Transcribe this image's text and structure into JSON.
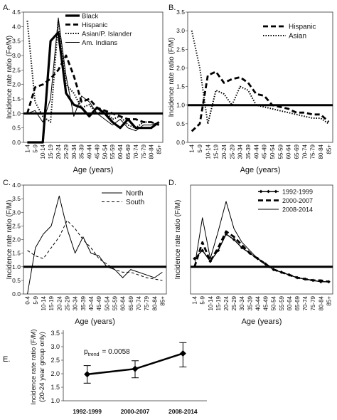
{
  "chart_data": [
    {
      "panel": "A.",
      "type": "line",
      "ylabel": "Incidence rate ratio (Fe/M)",
      "xlabel": "Age (years)",
      "ylim": [
        0,
        4.5
      ],
      "yticks": [
        "0.0",
        "0.5",
        "1.0",
        "1.5",
        "2.0",
        "2.5",
        "3.0",
        "3.5",
        "4.0",
        "4.5"
      ],
      "categories": [
        "1-4",
        "5-9",
        "10-14",
        "15-19",
        "20-24",
        "25-29",
        "30-34",
        "35-39",
        "40-44",
        "45-49",
        "50-54",
        "55-59",
        "60-64",
        "65-69",
        "70-74",
        "75-79",
        "80-84",
        "85+"
      ],
      "reference_line": 1.0,
      "legend": "top-left",
      "series": [
        {
          "name": "Black",
          "style": "solid-thick",
          "values": [
            0.0,
            0.0,
            0.0,
            3.5,
            3.8,
            1.7,
            1.3,
            1.2,
            0.9,
            1.2,
            1.0,
            0.7,
            0.5,
            0.8,
            0.5,
            0.5,
            0.5,
            0.7
          ]
        },
        {
          "name": "Hispanic",
          "style": "dashed-thick",
          "values": [
            1.0,
            1.9,
            2.0,
            2.2,
            2.5,
            3.0,
            2.3,
            1.4,
            1.5,
            1.2,
            1.1,
            1.0,
            0.9,
            0.8,
            0.8,
            0.7,
            0.7,
            0.6
          ]
        },
        {
          "name": "Asian/P. Islander",
          "style": "dotted",
          "values": [
            4.2,
            1.4,
            0.9,
            0.7,
            4.2,
            2.0,
            1.7,
            1.2,
            1.3,
            1.0,
            1.1,
            0.8,
            0.9,
            0.6,
            0.5,
            0.7,
            0.7,
            0.6
          ]
        },
        {
          "name": "Am. Indians",
          "style": "solid-thin",
          "values": [
            1.0,
            1.1,
            0.7,
            1.5,
            4.3,
            2.3,
            0.9,
            1.6,
            1.4,
            1.0,
            0.8,
            0.6,
            0.8,
            0.5,
            0.4,
            0.6,
            0.6,
            0.7
          ]
        }
      ]
    },
    {
      "panel": "B.",
      "type": "line",
      "ylabel": "Incidence rate ratio (F/M)",
      "xlabel": "Age (years)",
      "ylim": [
        0,
        3.5
      ],
      "yticks": [
        "0.0",
        "0.5",
        "1.0",
        "1.5",
        "2.0",
        "2.5",
        "3.0",
        "3.5"
      ],
      "categories": [
        "1-4",
        "5-9",
        "10-14",
        "15-19",
        "20-24",
        "25-29",
        "30-34",
        "35-39",
        "40-44",
        "45-49",
        "50-54",
        "55-59",
        "60-64",
        "65-69",
        "70-74",
        "75-79",
        "80-84",
        "85+"
      ],
      "reference_line": 1.0,
      "legend": "top-right",
      "series": [
        {
          "name": "Hispanic",
          "style": "dashed-thick",
          "values": [
            0.3,
            0.5,
            1.8,
            1.9,
            1.6,
            1.7,
            1.75,
            1.6,
            1.3,
            1.25,
            1.0,
            0.95,
            0.9,
            0.8,
            0.8,
            0.75,
            0.75,
            0.55
          ]
        },
        {
          "name": "Asian",
          "style": "dotted",
          "values": [
            3.0,
            2.0,
            0.5,
            1.4,
            1.3,
            1.0,
            1.5,
            1.4,
            1.0,
            0.95,
            0.9,
            0.85,
            0.8,
            0.75,
            0.7,
            0.65,
            0.65,
            0.5
          ]
        }
      ]
    },
    {
      "panel": "C.",
      "type": "line",
      "ylabel": "Incidence rate ratio (F/M)",
      "xlabel": "Age (years)",
      "ylim": [
        0,
        4.0
      ],
      "yticks": [
        "0.0",
        "0.5",
        "1.0",
        "1.5",
        "2.0",
        "2.5",
        "3.0",
        "3.5",
        "4.0"
      ],
      "categories": [
        "0-4",
        "5-9",
        "10-14",
        "15-19",
        "20-24",
        "25-29",
        "30-34",
        "35-39",
        "40-44",
        "45-49",
        "50-54",
        "55-59",
        "60-64",
        "65-69",
        "70-74",
        "75-79",
        "80-84",
        "85+"
      ],
      "reference_line": 1.0,
      "legend": "top-right",
      "series": [
        {
          "name": "North",
          "style": "solid-thin",
          "values": [
            0.0,
            1.7,
            2.2,
            2.5,
            3.6,
            2.4,
            1.5,
            2.1,
            1.5,
            1.4,
            1.0,
            0.9,
            0.6,
            0.9,
            0.8,
            0.7,
            0.6,
            0.8
          ]
        },
        {
          "name": "South",
          "style": "dashed-thin",
          "values": [
            1.6,
            1.4,
            1.3,
            1.7,
            2.1,
            2.7,
            2.4,
            2.0,
            1.7,
            1.3,
            1.1,
            0.9,
            0.8,
            0.8,
            0.7,
            0.6,
            0.55,
            0.5
          ]
        }
      ]
    },
    {
      "panel": "D.",
      "type": "line",
      "ylabel": "Incidence rate ratio (F/M)",
      "xlabel": "Age (years)",
      "ylim": [
        0,
        4.0
      ],
      "categories": [
        "1-4",
        "5-9",
        "10-14",
        "15-19",
        "20-24",
        "25-29",
        "30-34",
        "35-39",
        "40-44",
        "45-49",
        "50-54",
        "55-59",
        "60-64",
        "65-69",
        "70-74",
        "75-79",
        "80-84",
        "85+"
      ],
      "reference_line": 1.0,
      "legend": "top-right",
      "series": [
        {
          "name": "1992-1999",
          "style": "diamond-markers",
          "values": [
            1.3,
            1.6,
            1.2,
            1.6,
            2.2,
            2.0,
            1.7,
            1.5,
            1.3,
            1.1,
            0.9,
            0.8,
            0.7,
            0.6,
            0.55,
            0.5,
            0.45,
            0.45
          ]
        },
        {
          "name": "2000-2007",
          "style": "dashed-thick",
          "values": [
            1.0,
            1.9,
            1.2,
            1.7,
            2.3,
            2.1,
            1.8,
            1.5,
            1.3,
            1.1,
            0.9,
            0.8,
            0.7,
            0.6,
            0.55,
            0.5,
            0.5,
            0.45
          ]
        },
        {
          "name": "2008-2014",
          "style": "solid-thin",
          "values": [
            1.0,
            2.8,
            1.3,
            2.3,
            3.4,
            2.4,
            1.9,
            1.6,
            1.3,
            1.1,
            0.9,
            0.8,
            0.7,
            0.6,
            0.55,
            0.5,
            0.45,
            0.45
          ]
        }
      ]
    },
    {
      "panel": "E.",
      "type": "line",
      "ylabel": "Incidence rate ratio (F/M)\n(20-24 year group only)",
      "ylim": [
        1.0,
        3.5
      ],
      "yticks": [
        "1.0",
        "1.5",
        "2.0",
        "2.5",
        "3.0",
        "3.5"
      ],
      "categories": [
        "1992-1999",
        "2000-2007",
        "2008-2014"
      ],
      "annotation": {
        "p_main": "p",
        "p_sub": "trend",
        "p_value": "= 0.0058"
      },
      "series": [
        {
          "values": [
            1.98,
            2.18,
            2.75
          ],
          "lower": [
            1.65,
            1.85,
            2.25
          ],
          "upper": [
            2.3,
            2.48,
            3.15
          ]
        }
      ]
    }
  ]
}
